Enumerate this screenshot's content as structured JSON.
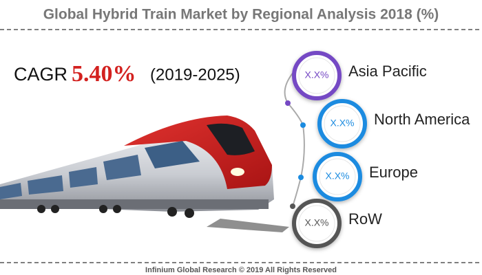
{
  "header": {
    "title": "Global Hybrid Train Market by Regional Analysis 2018 (%)"
  },
  "cagr": {
    "label": "CAGR",
    "value": "5.40%",
    "period": "(2019-2025)"
  },
  "regions": [
    {
      "share": "X.X%",
      "name": "Asia Pacific",
      "color": "#7548c4"
    },
    {
      "share": "X.X%",
      "name": "North America",
      "color": "#1b8be0"
    },
    {
      "share": "X.X%",
      "name": "Europe",
      "color": "#1b8be0"
    },
    {
      "share": "X.X%",
      "name": "RoW",
      "color": "#555555"
    }
  ],
  "footer": {
    "text": "Infinium Global Research © 2019 All Rights Reserved"
  }
}
